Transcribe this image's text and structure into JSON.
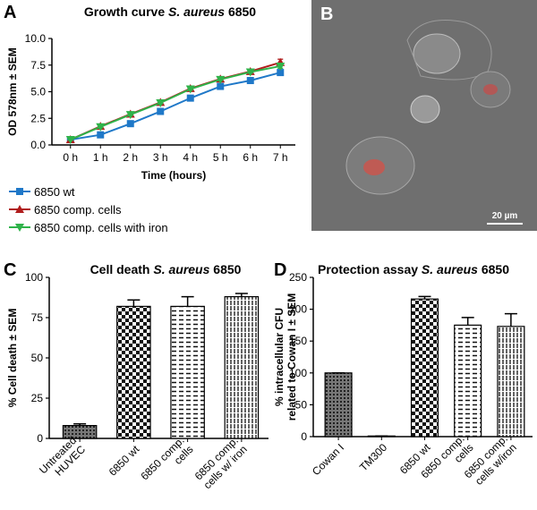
{
  "panel_labels": [
    "A",
    "B",
    "C",
    "D"
  ],
  "image": {
    "scale_bar": "20 µm"
  },
  "chart_data": [
    {
      "type": "line",
      "title": [
        "Growth curve ",
        "S. aureus",
        " 6850"
      ],
      "ylabel": [
        "OD 578nm ± SEM"
      ],
      "xlabel": "Time (hours)",
      "categories": [
        "0 h",
        "1 h",
        "2 h",
        "3 h",
        "4 h",
        "5 h",
        "6 h",
        "7 h"
      ],
      "ylim": [
        0,
        10
      ],
      "yticks": [
        {
          "value": 0,
          "label": "0.0"
        },
        2.5,
        {
          "value": 5,
          "label": "5.0"
        },
        7.5,
        {
          "value": 10,
          "label": "10.0"
        }
      ],
      "series": [
        {
          "name": "6850 wt",
          "color": "#1f78c8",
          "marker": "square",
          "values": [
            0.5,
            0.95,
            2.0,
            3.15,
            4.4,
            5.5,
            6.05,
            6.8
          ],
          "errors": [
            0.05,
            0.05,
            0.1,
            0.1,
            0.1,
            0.1,
            0.1,
            0.15
          ]
        },
        {
          "name": "6850 comp. cells",
          "color": "#b01c1c",
          "marker": "triangle-up",
          "values": [
            0.5,
            1.75,
            2.9,
            4.0,
            5.3,
            6.2,
            6.9,
            7.75
          ],
          "errors": [
            0.05,
            0.1,
            0.1,
            0.1,
            0.2,
            0.1,
            0.1,
            0.3
          ]
        },
        {
          "name": "6850 comp. cells with iron",
          "color": "#2fb34a",
          "marker": "triangle-down",
          "values": [
            0.5,
            1.7,
            2.85,
            3.95,
            5.25,
            6.15,
            6.85,
            7.4
          ],
          "errors": [
            0.05,
            0.1,
            0.1,
            0.1,
            0.1,
            0.1,
            0.1,
            0.2
          ]
        }
      ]
    },
    {
      "type": "bar",
      "title": [
        "Cell death ",
        "S. aureus",
        " 6850"
      ],
      "ylabel": [
        "% Cell death ± SEM"
      ],
      "categories": [
        [
          "Untreated",
          "HUVEC"
        ],
        [
          "6850 wt"
        ],
        [
          "6850 comp.",
          "cells"
        ],
        [
          "6850 comp.",
          "cells w/ iron"
        ]
      ],
      "values": [
        8,
        82,
        82,
        88
      ],
      "errors": [
        1,
        4,
        6,
        2
      ],
      "patterns": [
        "dots",
        "checker",
        "dashes",
        "vlines"
      ],
      "ylim": [
        0,
        100
      ],
      "yticks": [
        0,
        25,
        50,
        75,
        100
      ]
    },
    {
      "type": "bar",
      "title": [
        "Protection assay ",
        "S. aureus",
        " 6850"
      ],
      "ylabel": [
        "% intracellular CFU",
        "related to Cowan I ± SEM"
      ],
      "categories": [
        [
          "Cowan I"
        ],
        [
          "TM300"
        ],
        [
          "6850 wt"
        ],
        [
          "6850 comp.",
          "cells"
        ],
        [
          "6850 comp.",
          "cells w/iron"
        ]
      ],
      "values": [
        100,
        1,
        216,
        175,
        173
      ],
      "errors": [
        0,
        0,
        4,
        12,
        20
      ],
      "patterns": [
        "dots",
        "dots",
        "checker",
        "dashes",
        "vlines"
      ],
      "ylim": [
        0,
        250
      ],
      "yticks": [
        0,
        50,
        100,
        150,
        200,
        250
      ]
    }
  ]
}
